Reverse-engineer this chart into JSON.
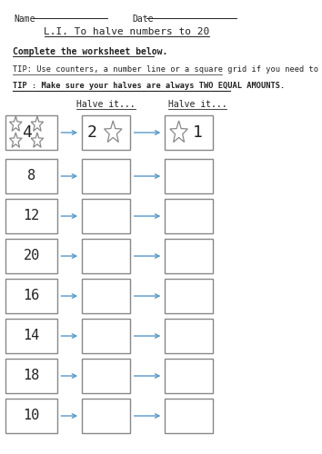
{
  "title": "L.I. To halve numbers to 20",
  "name_label": "Name",
  "date_label": "Date",
  "instruction": "Complete the worksheet below.",
  "tip1": "TIP: Use counters, a number line or a square grid if you need to",
  "tip2": "TIP : Make sure your halves are always TWO EQUAL AMOUNTS.",
  "col_header1": "Halve it...",
  "col_header2": "Halve it...",
  "numbers": [
    8,
    12,
    20,
    16,
    14,
    18,
    10
  ],
  "example_num": 4,
  "example_half1": 2,
  "example_half2": 1,
  "bg_color": "#ffffff",
  "box_edge_color": "#888888",
  "arrow_color": "#5599cc",
  "text_color": "#222222"
}
